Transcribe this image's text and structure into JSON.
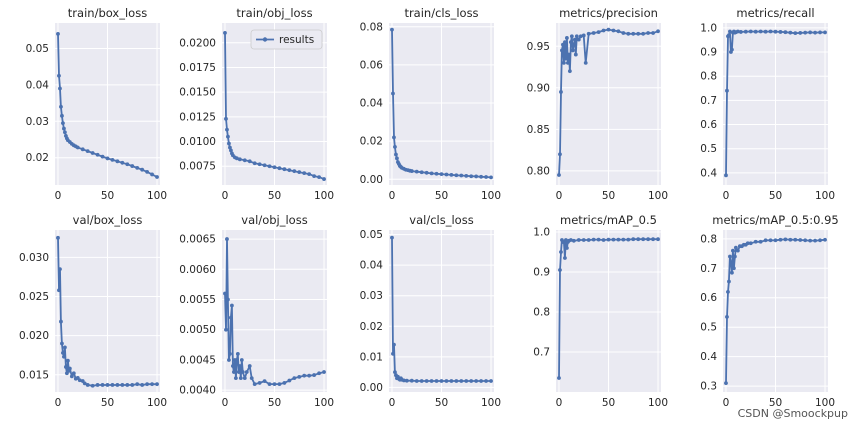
{
  "colors": {
    "line": "#4c72b0",
    "plot_bg": "#eaeaf2",
    "grid": "#ffffff",
    "text": "#262626"
  },
  "watermark": "CSDN @Smoockpup",
  "legend_label": "results",
  "chart_data": [
    {
      "type": "line",
      "title": "train/box_loss",
      "xlim": [
        -3,
        103
      ],
      "ylim": [
        0.0125,
        0.057
      ],
      "xticks": [
        0,
        50,
        100
      ],
      "xtick_labels": [
        "0",
        "50",
        "100"
      ],
      "yticks": [
        0.02,
        0.03,
        0.04,
        0.05
      ],
      "ytick_labels": [
        "0.02",
        "0.03",
        "0.04",
        "0.05"
      ],
      "series": [
        {
          "name": "results",
          "x": [
            0,
            1,
            2,
            3,
            4,
            5,
            6,
            7,
            8,
            9,
            10,
            12,
            14,
            16,
            18,
            20,
            25,
            30,
            35,
            40,
            45,
            50,
            55,
            60,
            65,
            70,
            75,
            80,
            85,
            90,
            95,
            100
          ],
          "y": [
            0.054,
            0.0425,
            0.039,
            0.034,
            0.0315,
            0.0295,
            0.028,
            0.027,
            0.026,
            0.0253,
            0.0248,
            0.0243,
            0.0238,
            0.0234,
            0.0231,
            0.0228,
            0.0223,
            0.0218,
            0.0213,
            0.0208,
            0.0203,
            0.0198,
            0.0194,
            0.019,
            0.0186,
            0.0182,
            0.0177,
            0.0172,
            0.0167,
            0.0161,
            0.0154,
            0.0147
          ]
        }
      ]
    },
    {
      "type": "line",
      "title": "train/obj_loss",
      "xlim": [
        -3,
        103
      ],
      "ylim": [
        0.0056,
        0.022
      ],
      "xticks": [
        0,
        50,
        100
      ],
      "xtick_labels": [
        "0",
        "50",
        "100"
      ],
      "yticks": [
        0.0075,
        0.01,
        0.0125,
        0.015,
        0.0175,
        0.02
      ],
      "ytick_labels": [
        "0.0075",
        "0.0100",
        "0.0125",
        "0.0150",
        "0.0175",
        "0.0200"
      ],
      "legend": true,
      "series": [
        {
          "name": "results",
          "x": [
            0,
            1,
            2,
            3,
            4,
            5,
            6,
            7,
            8,
            10,
            12,
            15,
            20,
            25,
            30,
            35,
            40,
            45,
            50,
            55,
            60,
            65,
            70,
            75,
            80,
            85,
            90,
            95,
            100
          ],
          "y": [
            0.021,
            0.0123,
            0.0112,
            0.0105,
            0.0098,
            0.0094,
            0.0091,
            0.0088,
            0.0086,
            0.0084,
            0.0083,
            0.0082,
            0.0081,
            0.008,
            0.0078,
            0.0077,
            0.0076,
            0.0075,
            0.0074,
            0.0073,
            0.0072,
            0.0071,
            0.007,
            0.0069,
            0.0068,
            0.0067,
            0.0065,
            0.0064,
            0.0062
          ]
        }
      ]
    },
    {
      "type": "line",
      "title": "train/cls_loss",
      "xlim": [
        -3,
        103
      ],
      "ylim": [
        -0.003,
        0.082
      ],
      "xticks": [
        0,
        50,
        100
      ],
      "xtick_labels": [
        "0",
        "50",
        "100"
      ],
      "yticks": [
        0,
        0.02,
        0.04,
        0.06,
        0.08
      ],
      "ytick_labels": [
        "0.00",
        "0.02",
        "0.04",
        "0.06",
        "0.08"
      ],
      "series": [
        {
          "name": "results",
          "x": [
            0,
            1,
            2,
            3,
            4,
            5,
            6,
            7,
            8,
            9,
            10,
            12,
            14,
            16,
            18,
            20,
            25,
            30,
            35,
            40,
            45,
            50,
            55,
            60,
            65,
            70,
            75,
            80,
            85,
            90,
            95,
            100
          ],
          "y": [
            0.0785,
            0.045,
            0.022,
            0.017,
            0.013,
            0.011,
            0.009,
            0.008,
            0.007,
            0.0065,
            0.006,
            0.0055,
            0.005,
            0.0048,
            0.0045,
            0.0043,
            0.004,
            0.0037,
            0.0034,
            0.0031,
            0.0029,
            0.0027,
            0.0025,
            0.0023,
            0.0021,
            0.002,
            0.0018,
            0.0016,
            0.0015,
            0.0013,
            0.0012,
            0.001
          ]
        }
      ]
    },
    {
      "type": "line",
      "title": "metrics/precision",
      "xlim": [
        -3,
        103
      ],
      "ylim": [
        0.783,
        0.978
      ],
      "xticks": [
        0,
        50,
        100
      ],
      "xtick_labels": [
        "0",
        "50",
        "100"
      ],
      "yticks": [
        0.8,
        0.85,
        0.9,
        0.95
      ],
      "ytick_labels": [
        "0.80",
        "0.85",
        "0.90",
        "0.95"
      ],
      "series": [
        {
          "name": "results",
          "x": [
            0,
            1,
            2,
            3,
            4,
            5,
            6,
            7,
            8,
            9,
            10,
            11,
            12,
            13,
            14,
            15,
            16,
            17,
            18,
            20,
            22,
            25,
            27,
            30,
            35,
            40,
            45,
            50,
            55,
            60,
            65,
            70,
            75,
            80,
            85,
            90,
            95,
            100
          ],
          "y": [
            0.795,
            0.82,
            0.895,
            0.945,
            0.952,
            0.93,
            0.955,
            0.935,
            0.96,
            0.93,
            0.94,
            0.92,
            0.955,
            0.962,
            0.945,
            0.952,
            0.958,
            0.94,
            0.962,
            0.958,
            0.962,
            0.963,
            0.93,
            0.965,
            0.966,
            0.967,
            0.969,
            0.97,
            0.969,
            0.968,
            0.966,
            0.965,
            0.965,
            0.965,
            0.965,
            0.966,
            0.966,
            0.968
          ]
        }
      ]
    },
    {
      "type": "line",
      "title": "metrics/recall",
      "xlim": [
        -3,
        103
      ],
      "ylim": [
        0.35,
        1.02
      ],
      "xticks": [
        0,
        50,
        100
      ],
      "xtick_labels": [
        "0",
        "50",
        "100"
      ],
      "yticks": [
        0.4,
        0.5,
        0.6,
        0.7,
        0.8,
        0.9,
        1.0
      ],
      "ytick_labels": [
        "0.4",
        "0.5",
        "0.6",
        "0.7",
        "0.8",
        "0.9",
        "1.0"
      ],
      "series": [
        {
          "name": "results",
          "x": [
            0,
            1,
            2,
            3,
            4,
            5,
            6,
            7,
            8,
            9,
            10,
            12,
            15,
            20,
            25,
            30,
            35,
            40,
            45,
            50,
            55,
            60,
            65,
            70,
            75,
            80,
            85,
            90,
            95,
            100
          ],
          "y": [
            0.39,
            0.74,
            0.965,
            0.97,
            0.985,
            0.9,
            0.91,
            0.98,
            0.985,
            0.98,
            0.982,
            0.985,
            0.983,
            0.984,
            0.985,
            0.984,
            0.985,
            0.984,
            0.985,
            0.984,
            0.983,
            0.982,
            0.98,
            0.978,
            0.979,
            0.98,
            0.981,
            0.98,
            0.981,
            0.981
          ]
        }
      ]
    },
    {
      "type": "line",
      "title": "val/box_loss",
      "xlim": [
        -3,
        103
      ],
      "ylim": [
        0.0128,
        0.0335
      ],
      "xticks": [
        0,
        50,
        100
      ],
      "xtick_labels": [
        "0",
        "50",
        "100"
      ],
      "yticks": [
        0.015,
        0.02,
        0.025,
        0.03
      ],
      "ytick_labels": [
        "0.015",
        "0.020",
        "0.025",
        "0.030"
      ],
      "series": [
        {
          "name": "results",
          "x": [
            0,
            1,
            2,
            3,
            4,
            5,
            6,
            7,
            8,
            9,
            10,
            11,
            12,
            14,
            16,
            18,
            20,
            22,
            25,
            27,
            30,
            35,
            40,
            45,
            50,
            55,
            60,
            65,
            70,
            75,
            80,
            85,
            90,
            95,
            100
          ],
          "y": [
            0.0325,
            0.0258,
            0.0285,
            0.0218,
            0.019,
            0.0178,
            0.0173,
            0.0185,
            0.016,
            0.0152,
            0.0168,
            0.0155,
            0.0158,
            0.0148,
            0.0152,
            0.0145,
            0.0146,
            0.0143,
            0.0142,
            0.0139,
            0.0137,
            0.0136,
            0.0137,
            0.0137,
            0.0137,
            0.0137,
            0.0137,
            0.0137,
            0.0137,
            0.0137,
            0.0138,
            0.0137,
            0.0138,
            0.0138,
            0.0138
          ]
        }
      ]
    },
    {
      "type": "line",
      "title": "val/obj_loss",
      "xlim": [
        -3,
        103
      ],
      "ylim": [
        0.00397,
        0.00665
      ],
      "xticks": [
        0,
        50,
        100
      ],
      "xtick_labels": [
        "0",
        "50",
        "100"
      ],
      "yticks": [
        0.004,
        0.0045,
        0.005,
        0.0055,
        0.006,
        0.0065
      ],
      "ytick_labels": [
        "0.0040",
        "0.0045",
        "0.0050",
        "0.0055",
        "0.0060",
        "0.0065"
      ],
      "series": [
        {
          "name": "results",
          "x": [
            0,
            1,
            2,
            3,
            4,
            5,
            6,
            7,
            8,
            9,
            10,
            11,
            12,
            13,
            14,
            15,
            16,
            17,
            18,
            20,
            22,
            25,
            27,
            30,
            35,
            40,
            45,
            50,
            55,
            60,
            65,
            70,
            75,
            80,
            85,
            90,
            95,
            100
          ],
          "y": [
            0.0056,
            0.005,
            0.0065,
            0.0055,
            0.0045,
            0.0046,
            0.0052,
            0.0054,
            0.0044,
            0.0043,
            0.0045,
            0.0042,
            0.0045,
            0.0046,
            0.0043,
            0.0044,
            0.0042,
            0.0045,
            0.0043,
            0.0042,
            0.0043,
            0.0044,
            0.0042,
            0.0041,
            0.00412,
            0.00415,
            0.0041,
            0.0041,
            0.0041,
            0.00412,
            0.00416,
            0.0042,
            0.00422,
            0.00424,
            0.00424,
            0.00425,
            0.00428,
            0.0043
          ]
        }
      ]
    },
    {
      "type": "line",
      "title": "val/cls_loss",
      "xlim": [
        -3,
        103
      ],
      "ylim": [
        -0.0015,
        0.0515
      ],
      "xticks": [
        0,
        50,
        100
      ],
      "xtick_labels": [
        "0",
        "50",
        "100"
      ],
      "yticks": [
        0,
        0.01,
        0.02,
        0.03,
        0.04,
        0.05
      ],
      "ytick_labels": [
        "0.00",
        "0.01",
        "0.02",
        "0.03",
        "0.04",
        "0.05"
      ],
      "series": [
        {
          "name": "results",
          "x": [
            0,
            1,
            2,
            3,
            4,
            5,
            6,
            7,
            8,
            9,
            10,
            12,
            15,
            20,
            25,
            30,
            35,
            40,
            45,
            50,
            55,
            60,
            65,
            70,
            75,
            80,
            85,
            90,
            95,
            100
          ],
          "y": [
            0.049,
            0.011,
            0.014,
            0.005,
            0.004,
            0.003,
            0.0035,
            0.0028,
            0.0025,
            0.003,
            0.0025,
            0.0023,
            0.0022,
            0.0022,
            0.0021,
            0.0021,
            0.0021,
            0.0021,
            0.0021,
            0.0021,
            0.0021,
            0.0021,
            0.0021,
            0.0021,
            0.0021,
            0.0021,
            0.0021,
            0.0021,
            0.0021,
            0.0021
          ]
        }
      ]
    },
    {
      "type": "line",
      "title": "metrics/mAP_0.5",
      "xlim": [
        -3,
        103
      ],
      "ylim": [
        0.6,
        1.005
      ],
      "xticks": [
        0,
        50,
        100
      ],
      "xtick_labels": [
        "0",
        "50",
        "100"
      ],
      "yticks": [
        0.7,
        0.8,
        0.9,
        1.0
      ],
      "ytick_labels": [
        "0.7",
        "0.8",
        "0.9",
        "1.0"
      ],
      "series": [
        {
          "name": "results",
          "x": [
            0,
            1,
            2,
            3,
            4,
            5,
            6,
            7,
            8,
            9,
            10,
            12,
            15,
            20,
            25,
            30,
            35,
            40,
            45,
            50,
            55,
            60,
            65,
            70,
            75,
            80,
            85,
            90,
            95,
            100
          ],
          "y": [
            0.635,
            0.905,
            0.95,
            0.98,
            0.975,
            0.975,
            0.935,
            0.98,
            0.96,
            0.975,
            0.978,
            0.98,
            0.978,
            0.98,
            0.98,
            0.98,
            0.981,
            0.981,
            0.98,
            0.981,
            0.981,
            0.981,
            0.981,
            0.981,
            0.982,
            0.982,
            0.982,
            0.982,
            0.982,
            0.982
          ]
        }
      ]
    },
    {
      "type": "line",
      "title": "metrics/mAP_0.5:0.95",
      "xlim": [
        -3,
        103
      ],
      "ylim": [
        0.28,
        0.83
      ],
      "xticks": [
        0,
        50,
        100
      ],
      "xtick_labels": [
        "0",
        "50",
        "100"
      ],
      "yticks": [
        0.3,
        0.4,
        0.5,
        0.6,
        0.7,
        0.8
      ],
      "ytick_labels": [
        "0.3",
        "0.4",
        "0.5",
        "0.6",
        "0.7",
        "0.8"
      ],
      "series": [
        {
          "name": "results",
          "x": [
            0,
            1,
            2,
            3,
            4,
            5,
            6,
            7,
            8,
            9,
            10,
            12,
            14,
            16,
            18,
            20,
            22,
            25,
            30,
            35,
            40,
            45,
            50,
            55,
            60,
            65,
            70,
            75,
            80,
            85,
            90,
            95,
            100
          ],
          "y": [
            0.31,
            0.535,
            0.62,
            0.655,
            0.74,
            0.72,
            0.685,
            0.76,
            0.7,
            0.74,
            0.77,
            0.76,
            0.775,
            0.775,
            0.78,
            0.78,
            0.785,
            0.785,
            0.79,
            0.79,
            0.795,
            0.795,
            0.795,
            0.797,
            0.798,
            0.797,
            0.797,
            0.796,
            0.795,
            0.794,
            0.794,
            0.795,
            0.797
          ]
        }
      ]
    }
  ]
}
